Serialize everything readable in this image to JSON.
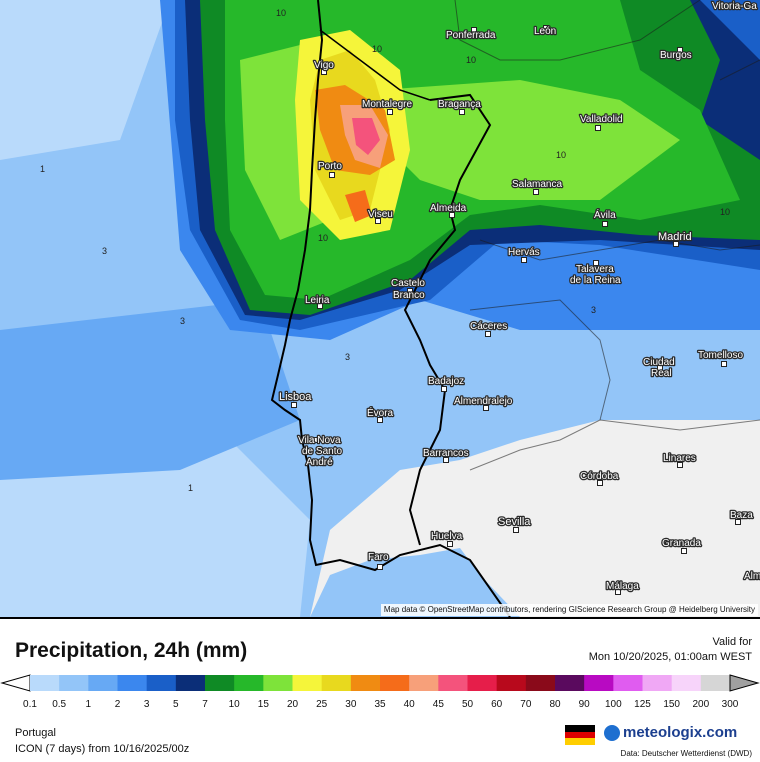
{
  "map": {
    "attribution": "Map data © OpenStreetMap contributors, rendering GIScience Research Group @ Heidelberg University",
    "cities": [
      {
        "name": "Vitoria-Ga",
        "type": "city"
      },
      {
        "name": "León",
        "type": "city"
      },
      {
        "name": "Ponferrada",
        "type": "city"
      },
      {
        "name": "Burgos",
        "type": "city"
      },
      {
        "name": "Vigo",
        "type": "city"
      },
      {
        "name": "Montalegre",
        "type": "city"
      },
      {
        "name": "Bragança",
        "type": "city"
      },
      {
        "name": "Valladolid",
        "type": "city"
      },
      {
        "name": "Porto",
        "type": "city"
      },
      {
        "name": "Salamanca",
        "type": "city"
      },
      {
        "name": "Viseu",
        "type": "city"
      },
      {
        "name": "Almeida",
        "type": "city"
      },
      {
        "name": "Ávila",
        "type": "city"
      },
      {
        "name": "Madrid",
        "type": "capital"
      },
      {
        "name": "Hervás",
        "type": "city"
      },
      {
        "name": "Talavera",
        "type": "city"
      },
      {
        "name": "de la Reina",
        "type": "city"
      },
      {
        "name": "Castelo",
        "type": "city"
      },
      {
        "name": "Branco",
        "type": "city"
      },
      {
        "name": "Leiria",
        "type": "city"
      },
      {
        "name": "Cáceres",
        "type": "city"
      },
      {
        "name": "Ciudad",
        "type": "city"
      },
      {
        "name": "Real",
        "type": "city"
      },
      {
        "name": "Tomelloso",
        "type": "city"
      },
      {
        "name": "Badajoz",
        "type": "city"
      },
      {
        "name": "Lisboa",
        "type": "capital"
      },
      {
        "name": "Almendralejo",
        "type": "city"
      },
      {
        "name": "Évora",
        "type": "city"
      },
      {
        "name": "Vila Nova",
        "type": "city"
      },
      {
        "name": "de Santo",
        "type": "city"
      },
      {
        "name": "André",
        "type": "city"
      },
      {
        "name": "Barrancos",
        "type": "city"
      },
      {
        "name": "Linares",
        "type": "city"
      },
      {
        "name": "Córdoba",
        "type": "city"
      },
      {
        "name": "Sevilla",
        "type": "city"
      },
      {
        "name": "Baza",
        "type": "city"
      },
      {
        "name": "Huelva",
        "type": "city"
      },
      {
        "name": "Granada",
        "type": "city"
      },
      {
        "name": "Faro",
        "type": "city"
      },
      {
        "name": "Málaga",
        "type": "city"
      },
      {
        "name": "Alm",
        "type": "city"
      }
    ],
    "isolines": [
      "10",
      "10",
      "10",
      "10",
      "10",
      "10",
      "1",
      "3",
      "3",
      "3",
      "1",
      "3"
    ]
  },
  "title": "Precipitation, 24h (mm)",
  "valid_label": "Valid for",
  "valid_time": "Mon 10/20/2025, 01:00am WEST",
  "legend": {
    "ticks": [
      "0.1",
      "0.5",
      "1",
      "2",
      "3",
      "5",
      "7",
      "10",
      "15",
      "20",
      "25",
      "30",
      "35",
      "40",
      "45",
      "50",
      "60",
      "70",
      "80",
      "90",
      "100",
      "125",
      "150",
      "200",
      "300"
    ],
    "colors": [
      "#b9dafb",
      "#93c5f8",
      "#67a9f4",
      "#3b87ee",
      "#1a5fc8",
      "#0b2e78",
      "#0f8a25",
      "#26b82a",
      "#7ee33a",
      "#f5f53a",
      "#e8d91e",
      "#f08b12",
      "#f56c1a",
      "#f7a07a",
      "#f4537c",
      "#e61e4a",
      "#b8091c",
      "#8a0a1a",
      "#5a0a5e",
      "#b80ac2",
      "#e05cf0",
      "#f0a8f5",
      "#f7d4fa",
      "#d6d6d6"
    ]
  },
  "region": "Portugal",
  "model": "ICON (7 days)  from  10/16/2025/00z",
  "logo_text": "meteologix.com",
  "source": "Data: Deutscher Wetterdienst (DWD)"
}
